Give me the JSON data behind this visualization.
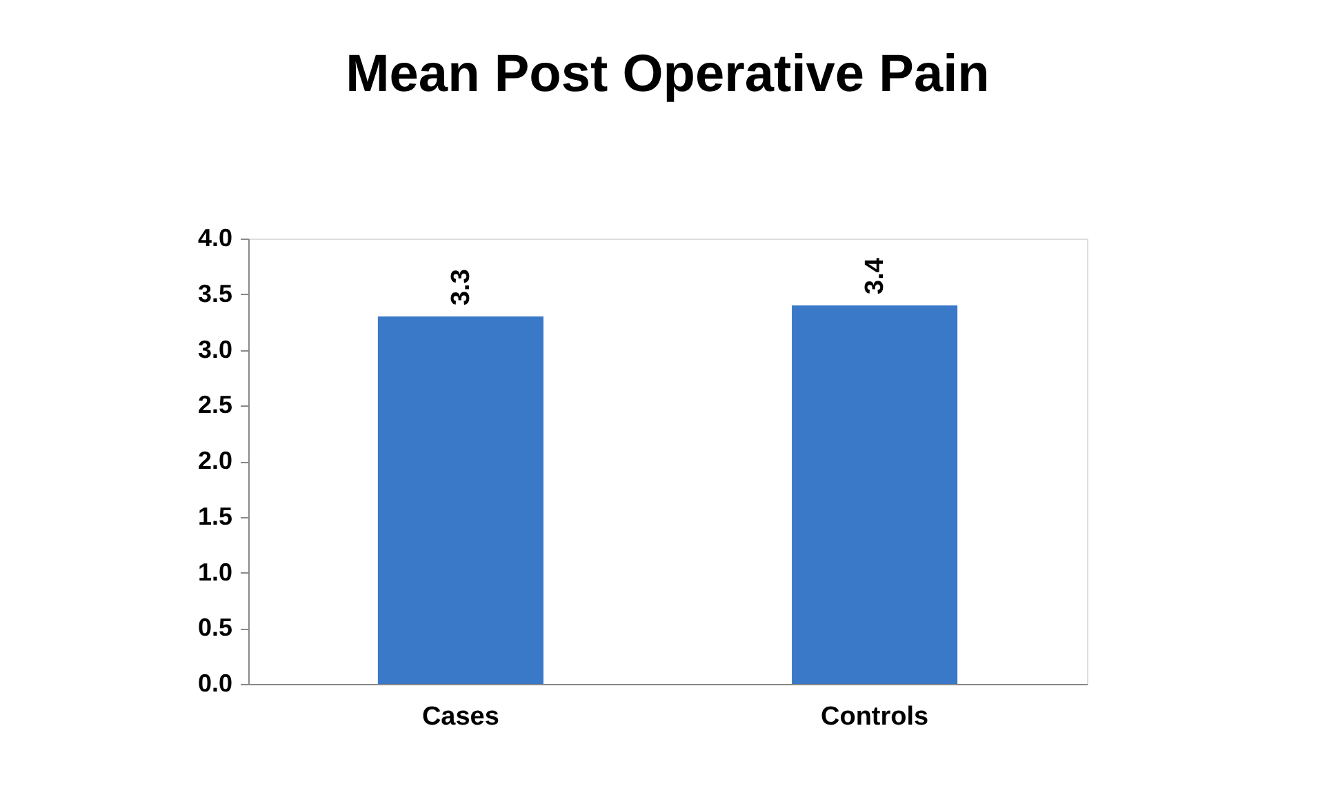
{
  "chart_data": {
    "type": "bar",
    "title": "Mean Post Operative Pain",
    "categories": [
      "Cases",
      "Controls"
    ],
    "values": [
      3.3,
      3.4
    ],
    "color": "#3a78c8",
    "ylim": [
      0,
      4
    ],
    "yticks": [
      {
        "value": 0,
        "label": "0.0"
      },
      0.5,
      {
        "value": 1,
        "label": "1.0"
      },
      1.5,
      {
        "value": 2,
        "label": "2.0"
      },
      2.5,
      {
        "value": 3,
        "label": "3.0"
      },
      3.5,
      {
        "value": 4,
        "label": "4.0"
      }
    ],
    "grid": false,
    "data_labels": true
  }
}
